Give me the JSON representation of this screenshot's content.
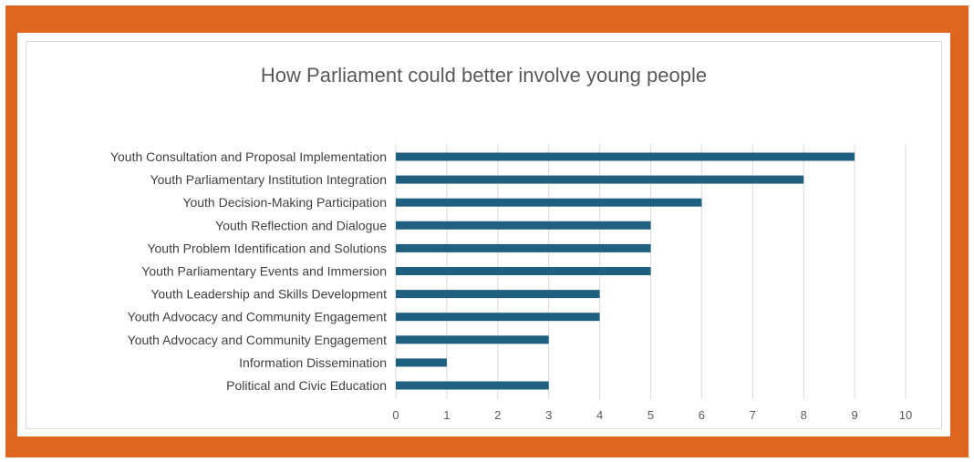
{
  "chart_data": {
    "type": "bar",
    "orientation": "horizontal",
    "title": "How Parliament could better involve young people",
    "xlabel": "",
    "ylabel": "",
    "xlim": [
      0,
      10
    ],
    "ticks": [
      "0",
      "1",
      "2",
      "3",
      "4",
      "5",
      "6",
      "7",
      "8",
      "9",
      "10"
    ],
    "grid": true,
    "legend": "none",
    "bar_color": "#1f5f7f",
    "categories": [
      "Youth Consultation and Proposal Implementation",
      "Youth Parliamentary Institution Integration",
      "Youth Decision-Making Participation",
      "Youth Reflection and Dialogue",
      "Youth Problem Identification and Solutions",
      "Youth Parliamentary Events and Immersion",
      "Youth Leadership and Skills Development",
      "Youth Advocacy and Community Engagement",
      "Youth Advocacy and Community Engagement",
      "Information Dissemination",
      "Political and Civic Education"
    ],
    "values": [
      9,
      8,
      6,
      5,
      5,
      5,
      4,
      4,
      3,
      1,
      3
    ]
  },
  "colors": {
    "frame": "#df6620",
    "bar": "#1f5f7f",
    "grid": "#d9d9d9"
  }
}
